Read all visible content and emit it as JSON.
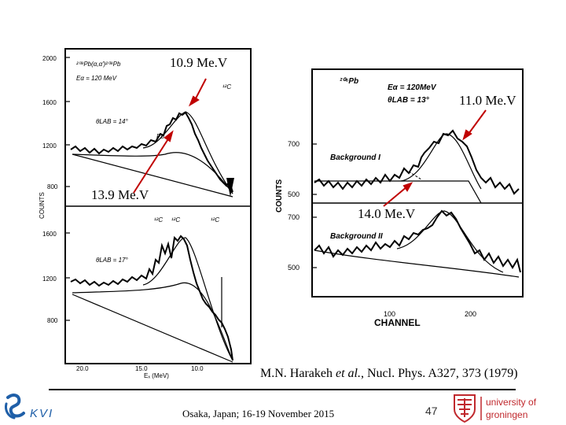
{
  "colors": {
    "accent": "#1f5fa8",
    "arrow": "#c00000",
    "rug_red": "#c0282d"
  },
  "annotations": {
    "a1": "10.9 Me.V",
    "a2": "11.0 Me.V",
    "a3": "13.9 Me.V",
    "a4": "14.0 Me.V"
  },
  "left_panel": {
    "y_ticks_top": [
      "2000",
      "1600",
      "1200",
      "800"
    ],
    "y_ticks_bottom": [
      "1600",
      "1200",
      "800"
    ],
    "y_label": "COUNTS",
    "x_ticks": [
      "20.0",
      "15.0",
      "10.0"
    ],
    "x_label": "Eₓ (MeV)",
    "top_reaction": "²⁰⁸Pb(α,α′)²⁰⁸Pb",
    "top_energy": "Eα = 120 MeV",
    "top_angle": "θLAB = 14°",
    "top_peak_label": "¹²C",
    "top_pb_label": "Pb",
    "bottom_angle": "θLAB = 17°",
    "bottom_c1": "¹²C",
    "bottom_c2": "¹²C",
    "bottom_c3": "¹²C"
  },
  "right_panel": {
    "target": "²⁰⁶Pb",
    "energy": "Eα = 120MeV",
    "angle": "θLAB = 13°",
    "y_label": "COUNTS",
    "y_ticks_top": [
      "700",
      "500"
    ],
    "y_ticks_bottom": [
      "700",
      "500"
    ],
    "background1": "Background I",
    "background2": "Background II",
    "x_ticks": [
      "100",
      "200"
    ],
    "x_label": "CHANNEL"
  },
  "citation": {
    "authors_plain": "M.N. Harakeh ",
    "authors_italic": "et al.",
    "rest": ", Nucl. Phys. A327, 373 (1979)"
  },
  "footer": {
    "location": "Osaka, Japan; 16-19 November 2015",
    "page_number": "47",
    "kvi_logo_text": "KVI",
    "university_logo_text_1": "university of",
    "university_logo_text_2": "groningen"
  }
}
